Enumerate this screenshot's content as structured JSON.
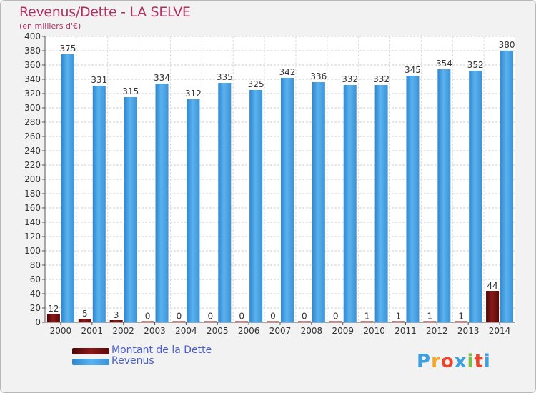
{
  "chart_data": {
    "type": "bar",
    "title": "Revenus/Dette - LA SELVE",
    "subtitle": "(en milliers d'€)",
    "categories": [
      "2000",
      "2001",
      "2002",
      "2003",
      "2004",
      "2005",
      "2006",
      "2007",
      "2008",
      "2009",
      "2010",
      "2011",
      "2012",
      "2013",
      "2014"
    ],
    "series": [
      {
        "name": "Montant de la Dette",
        "color": "#6b0d0d",
        "values": [
          12,
          5,
          3,
          0,
          0,
          0,
          0,
          0,
          0,
          0,
          1,
          1,
          1,
          1,
          44
        ]
      },
      {
        "name": "Revenus",
        "color": "#4ea6e6",
        "values": [
          375,
          331,
          315,
          334,
          312,
          335,
          325,
          342,
          336,
          332,
          332,
          345,
          354,
          352,
          380
        ]
      }
    ],
    "ylim": [
      0,
      400
    ],
    "ytick_step": 20,
    "grid": true,
    "legend_position": "bottom-left"
  },
  "logo": {
    "letters": [
      "P",
      "r",
      "o",
      "x",
      "i",
      "t",
      "i"
    ],
    "colors": [
      "#3aa0e0",
      "#f5a623",
      "#e8452c",
      "#3aa0e0",
      "#7cc043",
      "#e8452c",
      "#3aa0e0"
    ]
  }
}
